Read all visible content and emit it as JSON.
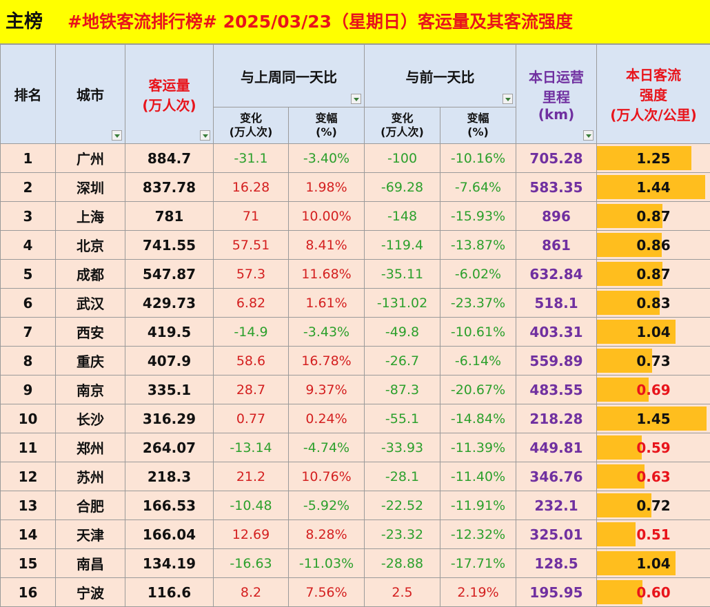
{
  "title": {
    "main": "主榜",
    "text": "#地铁客流排行榜# 2025/03/23（星期日）客运量及其客流强度"
  },
  "headers": {
    "rank": "排名",
    "city": "城市",
    "volume_line1": "客运量",
    "volume_line2": "(万人次)",
    "week_group": "与上周同一天比",
    "day_group": "与前一天比",
    "change_line1": "变化",
    "change_line2": "(万人次)",
    "pct_line1": "变幅",
    "pct_line2": "(%)",
    "mileage_line1": "本日运营",
    "mileage_line2": "里程",
    "mileage_line3": "(km)",
    "intensity_line1": "本日客流",
    "intensity_line2": "强度",
    "intensity_line3": "(万人次/公里)"
  },
  "rows": [
    {
      "rank": "1",
      "city": "广州",
      "volume": "884.7",
      "week_change": "-31.1",
      "week_pct": "-3.40%",
      "day_change": "-100",
      "day_pct": "-10.16%",
      "mileage": "705.28",
      "intensity": "1.25",
      "intensity_value": 1.25,
      "intensity_color": "black"
    },
    {
      "rank": "2",
      "city": "深圳",
      "volume": "837.78",
      "week_change": "16.28",
      "week_pct": "1.98%",
      "day_change": "-69.28",
      "day_pct": "-7.64%",
      "mileage": "583.35",
      "intensity": "1.44",
      "intensity_value": 1.44,
      "intensity_color": "black"
    },
    {
      "rank": "3",
      "city": "上海",
      "volume": "781",
      "week_change": "71",
      "week_pct": "10.00%",
      "day_change": "-148",
      "day_pct": "-15.93%",
      "mileage": "896",
      "intensity": "0.87",
      "intensity_value": 0.87,
      "intensity_color": "black"
    },
    {
      "rank": "4",
      "city": "北京",
      "volume": "741.55",
      "week_change": "57.51",
      "week_pct": "8.41%",
      "day_change": "-119.4",
      "day_pct": "-13.87%",
      "mileage": "861",
      "intensity": "0.86",
      "intensity_value": 0.86,
      "intensity_color": "black"
    },
    {
      "rank": "5",
      "city": "成都",
      "volume": "547.87",
      "week_change": "57.3",
      "week_pct": "11.68%",
      "day_change": "-35.11",
      "day_pct": "-6.02%",
      "mileage": "632.84",
      "intensity": "0.87",
      "intensity_value": 0.87,
      "intensity_color": "black"
    },
    {
      "rank": "6",
      "city": "武汉",
      "volume": "429.73",
      "week_change": "6.82",
      "week_pct": "1.61%",
      "day_change": "-131.02",
      "day_pct": "-23.37%",
      "mileage": "518.1",
      "intensity": "0.83",
      "intensity_value": 0.83,
      "intensity_color": "black"
    },
    {
      "rank": "7",
      "city": "西安",
      "volume": "419.5",
      "week_change": "-14.9",
      "week_pct": "-3.43%",
      "day_change": "-49.8",
      "day_pct": "-10.61%",
      "mileage": "403.31",
      "intensity": "1.04",
      "intensity_value": 1.04,
      "intensity_color": "black"
    },
    {
      "rank": "8",
      "city": "重庆",
      "volume": "407.9",
      "week_change": "58.6",
      "week_pct": "16.78%",
      "day_change": "-26.7",
      "day_pct": "-6.14%",
      "mileage": "559.89",
      "intensity": "0.73",
      "intensity_value": 0.73,
      "intensity_color": "black"
    },
    {
      "rank": "9",
      "city": "南京",
      "volume": "335.1",
      "week_change": "28.7",
      "week_pct": "9.37%",
      "day_change": "-87.3",
      "day_pct": "-20.67%",
      "mileage": "483.55",
      "intensity": "0.69",
      "intensity_value": 0.69,
      "intensity_color": "red"
    },
    {
      "rank": "10",
      "city": "长沙",
      "volume": "316.29",
      "week_change": "0.77",
      "week_pct": "0.24%",
      "day_change": "-55.1",
      "day_pct": "-14.84%",
      "mileage": "218.28",
      "intensity": "1.45",
      "intensity_value": 1.45,
      "intensity_color": "black"
    },
    {
      "rank": "11",
      "city": "郑州",
      "volume": "264.07",
      "week_change": "-13.14",
      "week_pct": "-4.74%",
      "day_change": "-33.93",
      "day_pct": "-11.39%",
      "mileage": "449.81",
      "intensity": "0.59",
      "intensity_value": 0.59,
      "intensity_color": "red"
    },
    {
      "rank": "12",
      "city": "苏州",
      "volume": "218.3",
      "week_change": "21.2",
      "week_pct": "10.76%",
      "day_change": "-28.1",
      "day_pct": "-11.40%",
      "mileage": "346.76",
      "intensity": "0.63",
      "intensity_value": 0.63,
      "intensity_color": "red"
    },
    {
      "rank": "13",
      "city": "合肥",
      "volume": "166.53",
      "week_change": "-10.48",
      "week_pct": "-5.92%",
      "day_change": "-22.52",
      "day_pct": "-11.91%",
      "mileage": "232.1",
      "intensity": "0.72",
      "intensity_value": 0.72,
      "intensity_color": "black"
    },
    {
      "rank": "14",
      "city": "天津",
      "volume": "166.04",
      "week_change": "12.69",
      "week_pct": "8.28%",
      "day_change": "-23.32",
      "day_pct": "-12.32%",
      "mileage": "325.01",
      "intensity": "0.51",
      "intensity_value": 0.51,
      "intensity_color": "red"
    },
    {
      "rank": "15",
      "city": "南昌",
      "volume": "134.19",
      "week_change": "-16.63",
      "week_pct": "-11.03%",
      "day_change": "-28.88",
      "day_pct": "-17.71%",
      "mileage": "128.5",
      "intensity": "1.04",
      "intensity_value": 1.04,
      "intensity_color": "black"
    },
    {
      "rank": "16",
      "city": "宁波",
      "volume": "116.6",
      "week_change": "8.2",
      "week_pct": "7.56%",
      "day_change": "2.5",
      "day_pct": "2.19%",
      "mileage": "195.95",
      "intensity": "0.60",
      "intensity_value": 0.6,
      "intensity_color": "red"
    }
  ],
  "intensity_bar_max": 1.5,
  "colors": {
    "title_bg": "#ffff00",
    "title_text": "#e8141b",
    "header_bg": "#d9e4f3",
    "row_bg": "#fce4d6",
    "increase": "#d42020",
    "decrease": "#2ca02c",
    "mileage": "#7030a0",
    "bar": "#ffbe1e"
  }
}
